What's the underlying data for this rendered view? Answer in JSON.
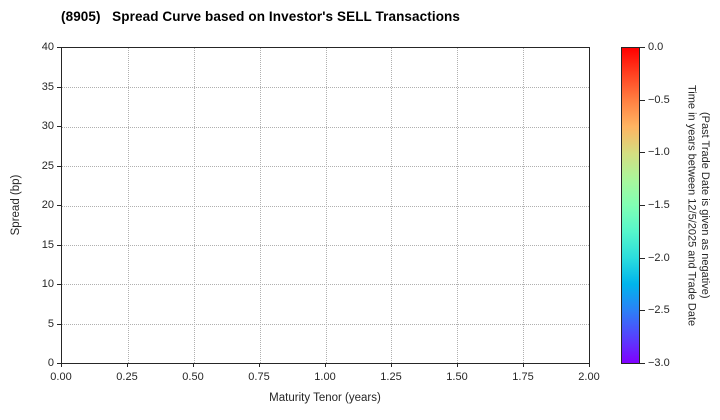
{
  "title": "(8905)   Spread Curve based on Investor's SELL Transactions",
  "chart_data": {
    "type": "scatter",
    "title": "(8905)   Spread Curve based on Investor's SELL Transactions",
    "xlabel": "Maturity Tenor (years)",
    "ylabel": "Spread (bp)",
    "xlim": [
      0.0,
      2.0
    ],
    "ylim": [
      0,
      40
    ],
    "x_ticks": [
      "0.00",
      "0.25",
      "0.50",
      "0.75",
      "1.00",
      "1.25",
      "1.50",
      "1.75",
      "2.00"
    ],
    "y_ticks": [
      "0",
      "5",
      "10",
      "15",
      "20",
      "25",
      "30",
      "35",
      "40"
    ],
    "grid": true,
    "grid_style": "dotted",
    "points": [],
    "series": [],
    "legend": null,
    "colorbar": {
      "label_line1": "Time in years between 12/5/2025 and Trade Date",
      "label_line2": "(Past Trade Date is given as negative)",
      "ticks": [
        "0.0",
        "−0.5",
        "−1.0",
        "−1.5",
        "−2.0",
        "−2.5",
        "−3.0"
      ],
      "range": [
        0.0,
        -3.0
      ],
      "colormap": "rainbow",
      "gradient_top_to_bottom": [
        "#ff0000",
        "#ff4221",
        "#ff8042",
        "#ffb462",
        "#d5dd80",
        "#aaf69b",
        "#80ffb4",
        "#55f6cb",
        "#2bdddd",
        "#00b4ec",
        "#2b80f6",
        "#5542fd",
        "#8000ff"
      ]
    },
    "colors": {
      "background": "#ffffff",
      "spine": "#262626",
      "grid": "#b0b0b0",
      "text": "#262626"
    }
  }
}
